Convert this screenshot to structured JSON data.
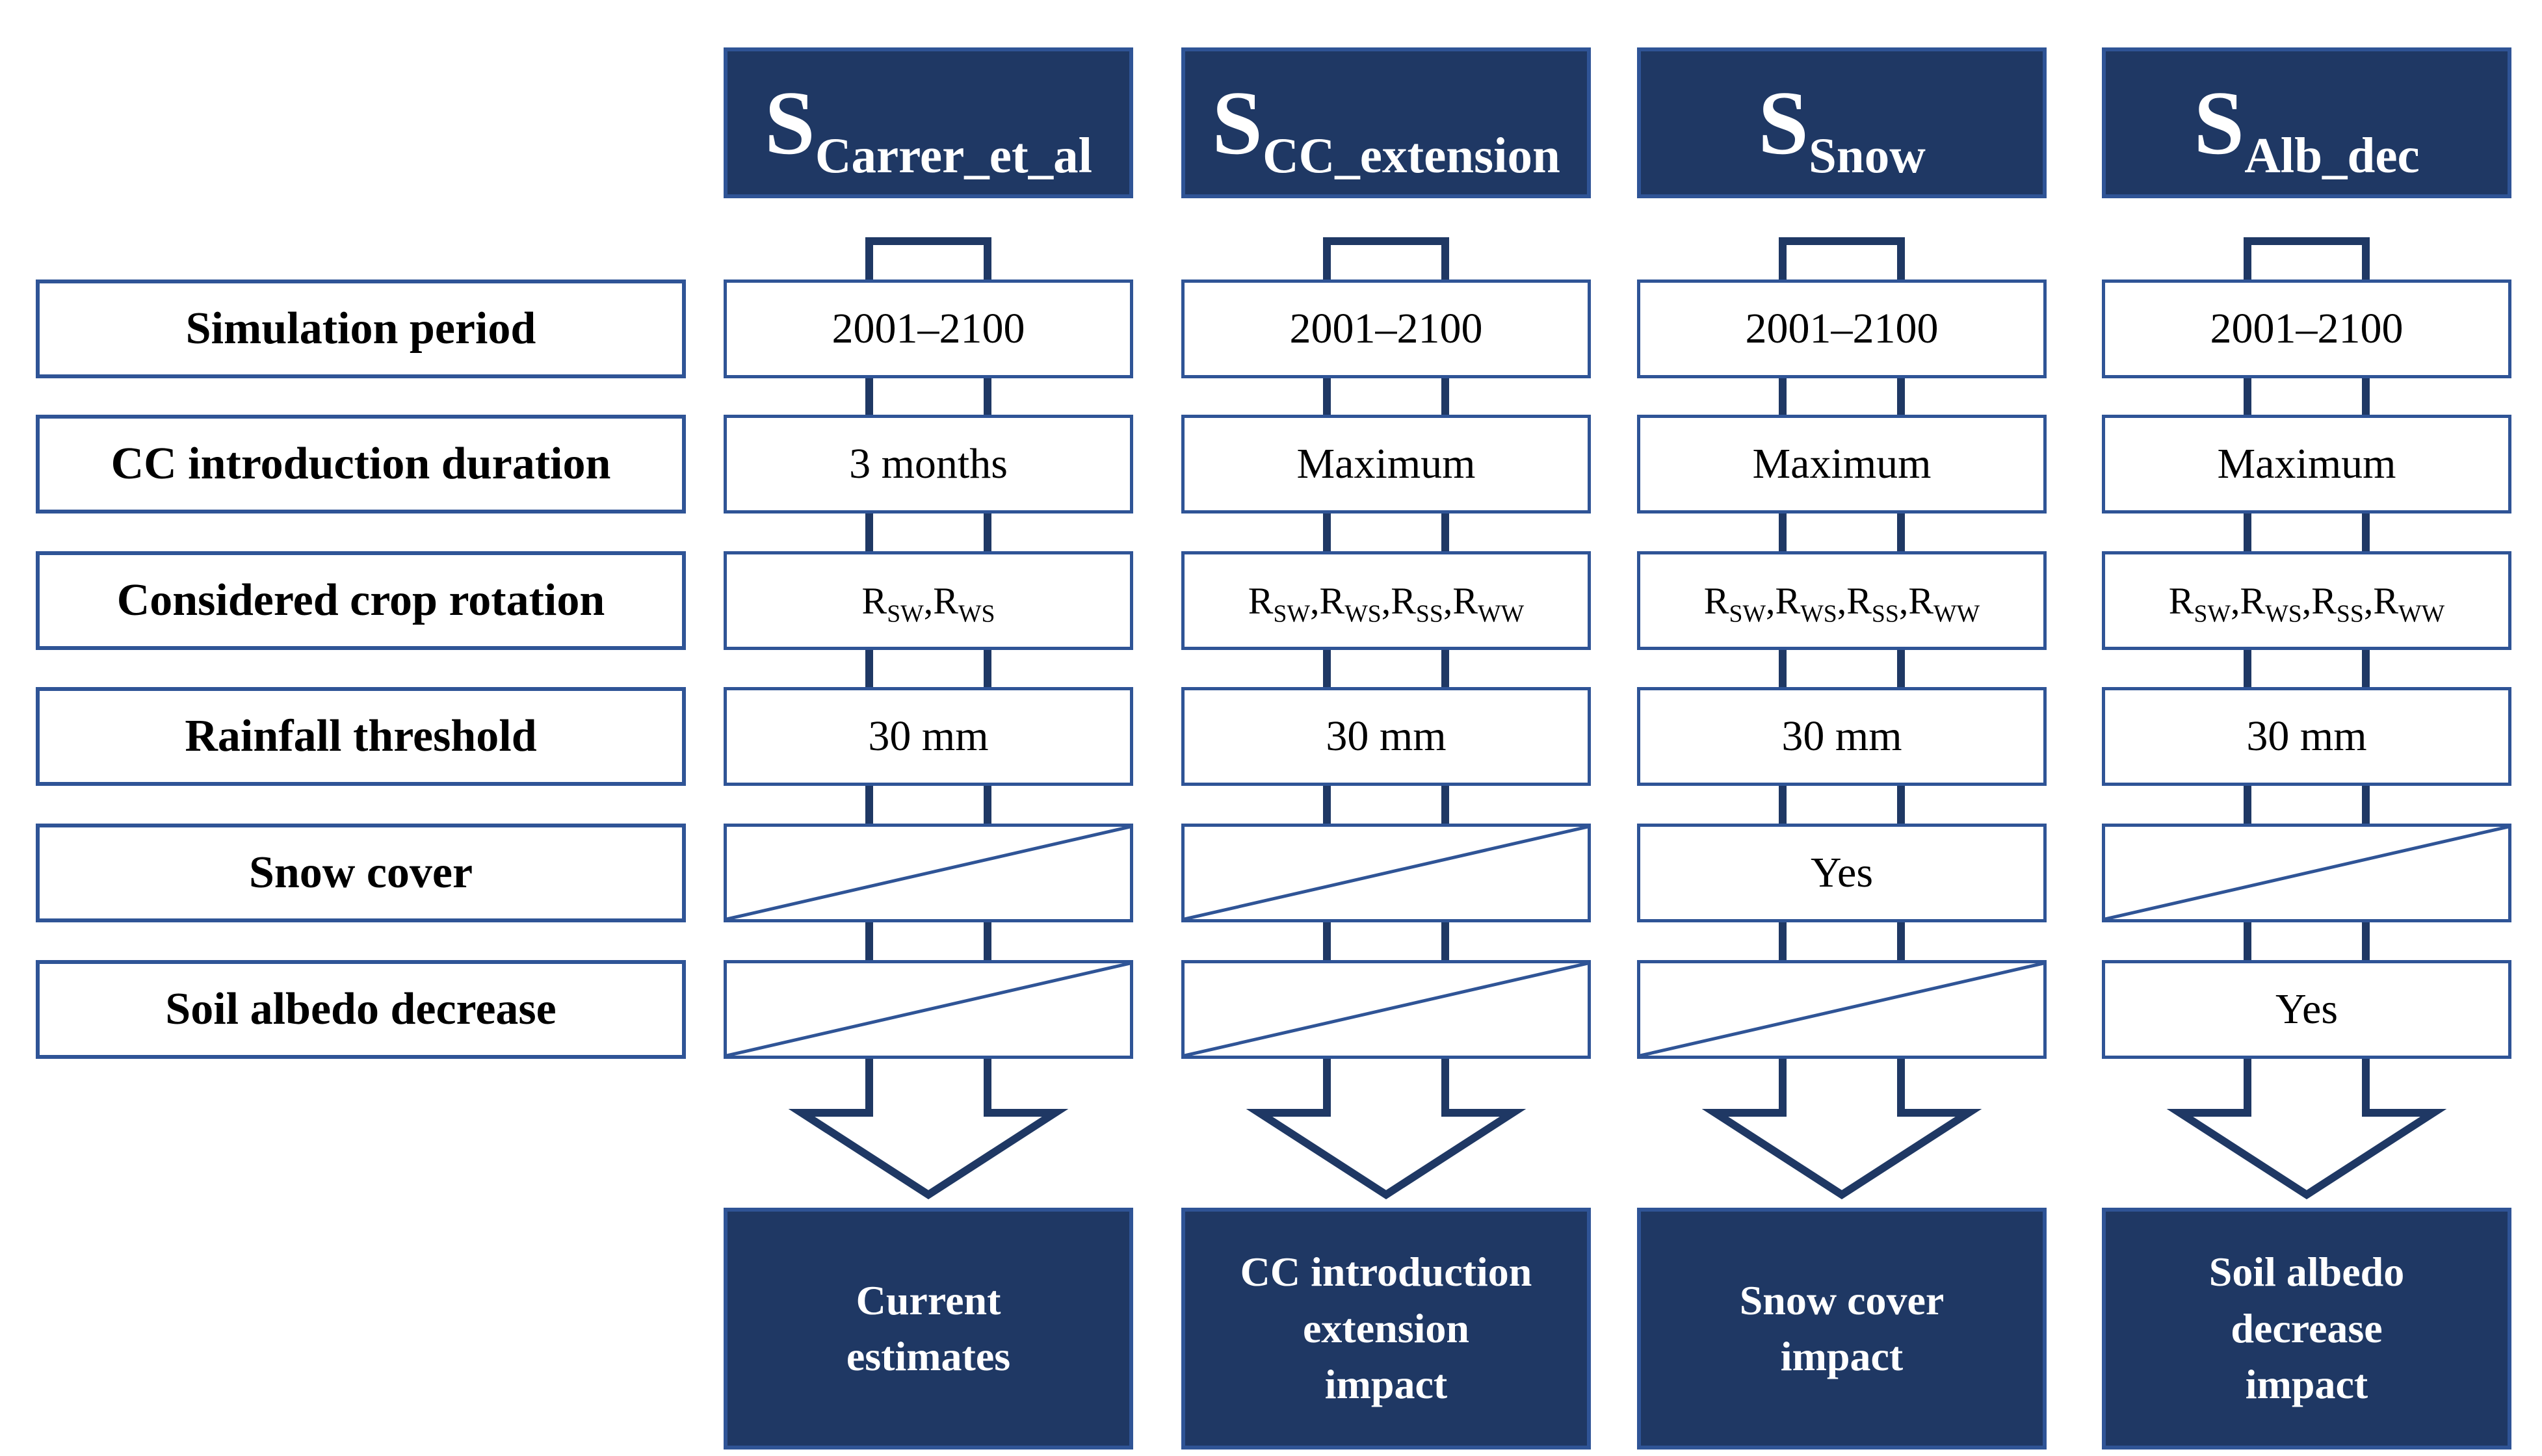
{
  "figure": {
    "kind": "simulation-scenario-comparison",
    "colors": {
      "navy_fill": "#1F3864",
      "blue_border": "#2F5496",
      "connector": "#1F3864",
      "diagonal": "#2F5496",
      "text_dark": "#000000",
      "text_light": "#FFFFFF",
      "background": "#FFFFFF"
    },
    "rotation_separator": ",",
    "row_labels": [
      "Simulation period",
      "CC introduction duration",
      "Considered crop rotation",
      "Rainfall threshold",
      "Snow cover",
      "Soil albedo decrease"
    ],
    "columns": [
      {
        "header_base": "S",
        "header_sub": "Carrer_et_al",
        "cells": [
          {
            "kind": "text",
            "value": "2001–2100"
          },
          {
            "kind": "text",
            "value": "3 months"
          },
          {
            "kind": "rotation",
            "parts": [
              [
                "R",
                "SW"
              ],
              [
                "R",
                "WS"
              ]
            ]
          },
          {
            "kind": "text",
            "value": "30 mm"
          },
          {
            "kind": "na"
          },
          {
            "kind": "na"
          }
        ],
        "result_lines": [
          "Current",
          "estimates"
        ]
      },
      {
        "header_base": "S",
        "header_sub": "CC_extension",
        "cells": [
          {
            "kind": "text",
            "value": "2001–2100"
          },
          {
            "kind": "text",
            "value": "Maximum"
          },
          {
            "kind": "rotation",
            "parts": [
              [
                "R",
                "SW"
              ],
              [
                "R",
                "WS"
              ],
              [
                "R",
                "SS"
              ],
              [
                "R",
                "WW"
              ]
            ]
          },
          {
            "kind": "text",
            "value": "30 mm"
          },
          {
            "kind": "na"
          },
          {
            "kind": "na"
          }
        ],
        "result_lines": [
          "CC introduction",
          "extension",
          "impact"
        ]
      },
      {
        "header_base": "S",
        "header_sub": "Snow",
        "cells": [
          {
            "kind": "text",
            "value": "2001–2100"
          },
          {
            "kind": "text",
            "value": "Maximum"
          },
          {
            "kind": "rotation",
            "parts": [
              [
                "R",
                "SW"
              ],
              [
                "R",
                "WS"
              ],
              [
                "R",
                "SS"
              ],
              [
                "R",
                "WW"
              ]
            ]
          },
          {
            "kind": "text",
            "value": "30 mm"
          },
          {
            "kind": "text",
            "value": "Yes"
          },
          {
            "kind": "na"
          }
        ],
        "result_lines": [
          "Snow cover",
          "impact"
        ]
      },
      {
        "header_base": "S",
        "header_sub": "Alb_dec",
        "cells": [
          {
            "kind": "text",
            "value": "2001–2100"
          },
          {
            "kind": "text",
            "value": "Maximum"
          },
          {
            "kind": "rotation",
            "parts": [
              [
                "R",
                "SW"
              ],
              [
                "R",
                "WS"
              ],
              [
                "R",
                "SS"
              ],
              [
                "R",
                "WW"
              ]
            ]
          },
          {
            "kind": "text",
            "value": "30 mm"
          },
          {
            "kind": "na"
          },
          {
            "kind": "text",
            "value": "Yes"
          }
        ],
        "result_lines": [
          "Soil albedo",
          "decrease",
          "impact"
        ]
      }
    ]
  }
}
